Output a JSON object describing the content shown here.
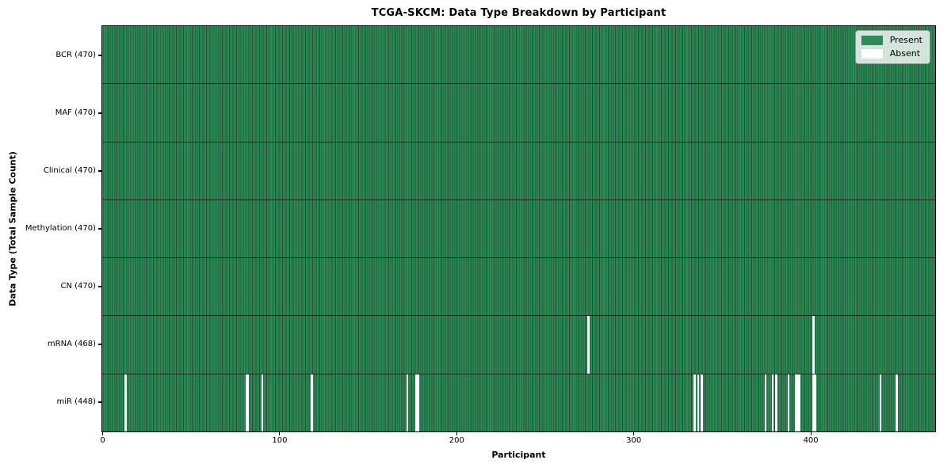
{
  "chart_data": {
    "type": "heatmap",
    "title": "TCGA-SKCM: Data Type Breakdown by Participant",
    "xlabel": "Participant",
    "ylabel": "Data Type (Total Sample Count)",
    "n_participants": 470,
    "x_ticks": [
      0,
      100,
      200,
      300,
      400
    ],
    "grid": false,
    "colors": {
      "present": "#2e8b57",
      "present_stripe": "#1d5435",
      "absent": "#ffffff"
    },
    "legend": {
      "position": "upper right",
      "entries": [
        {
          "label": "Present",
          "color": "#2e8b57"
        },
        {
          "label": "Absent",
          "color": "#ffffff"
        }
      ]
    },
    "rows": [
      {
        "key": "bcr",
        "label": "BCR (470)",
        "total": 470,
        "absent": []
      },
      {
        "key": "maf",
        "label": "MAF (470)",
        "total": 470,
        "absent": []
      },
      {
        "key": "clinical",
        "label": "Clinical (470)",
        "total": 470,
        "absent": []
      },
      {
        "key": "methylation",
        "label": "Methylation (470)",
        "total": 470,
        "absent": []
      },
      {
        "key": "cn",
        "label": "CN (470)",
        "total": 470,
        "absent": []
      },
      {
        "key": "mrna",
        "label": "mRNA (468)",
        "total": 468,
        "absent": [
          274,
          401
        ]
      },
      {
        "key": "mir",
        "label": "miR (448)",
        "total": 448,
        "absent": [
          13,
          81,
          82,
          90,
          118,
          172,
          177,
          178,
          334,
          336,
          338,
          374,
          378,
          380,
          387,
          391,
          392,
          393,
          401,
          402,
          439,
          448
        ]
      }
    ]
  }
}
